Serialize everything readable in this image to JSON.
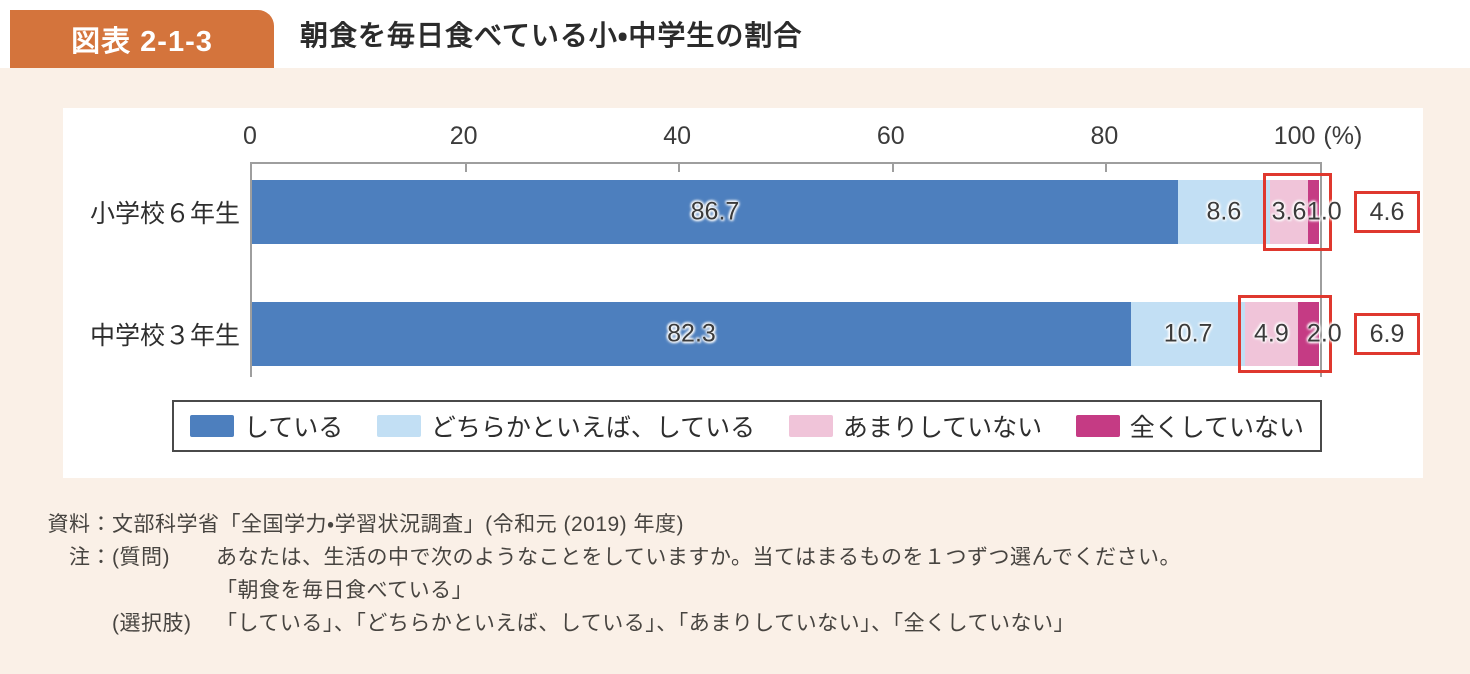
{
  "header": {
    "badge": "図表 2-1-3",
    "title": "朝食を毎日食べている小・中学生の割合"
  },
  "colors": {
    "badge_orange": "#d4743c",
    "page_cream": "#faf0e7",
    "series_blue": "#4d7fbe",
    "series_lightblue": "#c2dff4",
    "series_pink": "#f0c4d9",
    "series_magenta": "#c53b84",
    "highlight_red": "#df382e",
    "axis_gray": "#9e9e9e"
  },
  "chart_data": {
    "type": "bar",
    "subtype": "horizontal-stacked",
    "axis": {
      "ticks": [
        0,
        20,
        40,
        60,
        80,
        100
      ],
      "unit": "(%)",
      "max": 100
    },
    "series": [
      {
        "name": "している",
        "color": "#4d7fbe"
      },
      {
        "name": "どちらかといえば、している",
        "color": "#c2dff4"
      },
      {
        "name": "あまりしていない",
        "color": "#f0c4d9"
      },
      {
        "name": "全くしていない",
        "color": "#c53b84"
      }
    ],
    "rows": [
      {
        "label": "小学校６年生",
        "values": [
          86.7,
          8.6,
          3.6,
          1.0
        ],
        "highlighted_sum": 4.6
      },
      {
        "label": "中学校３年生",
        "values": [
          82.3,
          10.7,
          4.9,
          2.0
        ],
        "highlighted_sum": 6.9
      }
    ],
    "highlight_note": "あまりしていない＋全くしていない segments are outlined in red with their sum boxed at right"
  },
  "notes": {
    "source_label": "資料：",
    "source_text": "文部科学省「全国学力・学習状況調査」(令和元 (2019) 年度)",
    "note_label": "注：",
    "question_label": "(質問)",
    "question_text": "あなたは、生活の中で次のようなことをしていますか。当てはまるものを１つずつ選んでください。",
    "question_quote": "「朝食を毎日食べている」",
    "options_label": "(選択肢)",
    "options_text": "「している」、「どちらかといえば、している」、「あまりしていない」、「全くしていない」"
  }
}
